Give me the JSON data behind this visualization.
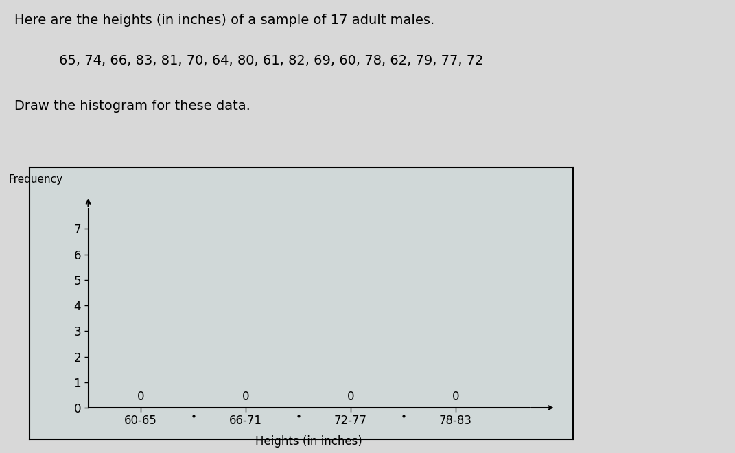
{
  "title_line1": "Here are the heights (in inches) of a sample of 17 adult males.",
  "title_line2": "65, 74, 66, 83, 81, 70, 64, 80, 61, 82, 69, 60, 78, 62, 79, 77, 72",
  "title_line3": "Draw the histogram for these data.",
  "categories": [
    "60-65",
    "66-71",
    "72-77",
    "78-83"
  ],
  "frequencies": [
    0,
    0,
    0,
    0
  ],
  "ylabel_arrow": "Frequency",
  "xlabel": "Heights (in inches)",
  "ylim_max": 7.8,
  "yticks": [
    0,
    1,
    2,
    3,
    4,
    5,
    6,
    7
  ],
  "background_color": "#d8d8d8",
  "plot_bg_color": "#d0d8d8",
  "outer_box_color": "#000000",
  "title_fontsize": 14,
  "axis_label_fontsize": 12,
  "tick_fontsize": 12,
  "freq_label_fontsize": 11
}
